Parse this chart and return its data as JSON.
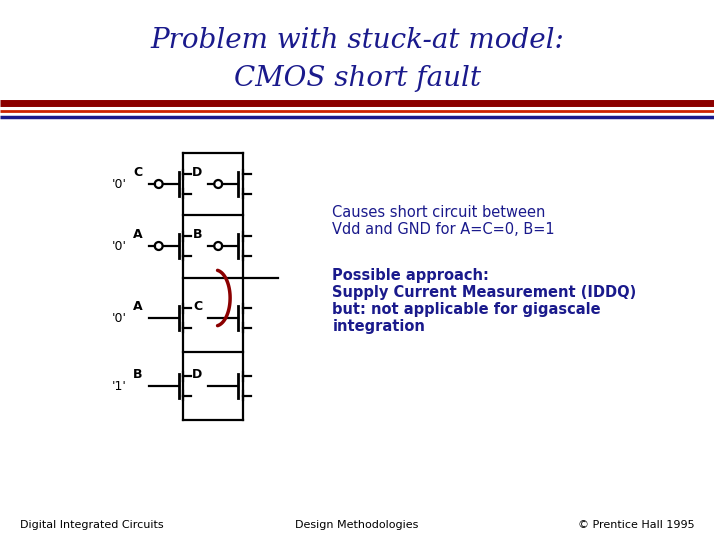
{
  "title_line1": "Problem with stuck-at model:",
  "title_line2": "CMOS short fault",
  "title_color": "#1a1a8c",
  "bg_color": "#ffffff",
  "text_right_line1": "Causes short circuit between",
  "text_right_line2": "Vdd and GND for A=C=0, B=1",
  "text_right_bold1": "Possible approach:",
  "text_right_bold2": "Supply Current Measurement (IDDQ)",
  "text_right_bold3": "but: not applicable for gigascale",
  "text_right_bold4": "integration",
  "footer_left": "Digital Integrated Circuits",
  "footer_center": "Design Methodologies",
  "footer_right": "© Prentice Hall 1995",
  "short_arc_color": "#8b0000",
  "sep_thick_color": "#8b0000",
  "sep_mid_color": "#cc2200",
  "sep_thin_color": "#1a1a8c"
}
